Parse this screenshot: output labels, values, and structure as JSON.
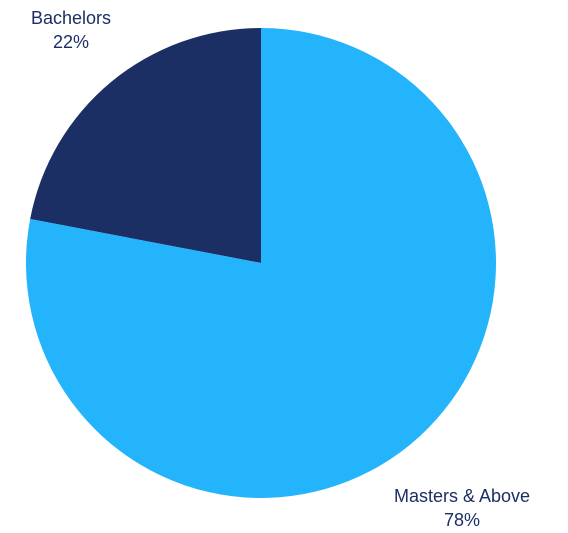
{
  "chart_data": {
    "type": "pie",
    "title": "",
    "slices": [
      {
        "label": "Bachelors",
        "value": 22,
        "value_label": "22%",
        "color": "#1b2f64"
      },
      {
        "label": "Masters & Above",
        "value": 78,
        "value_label": "78%",
        "color": "#23b4fc"
      }
    ],
    "start_angle": "12 o'clock",
    "direction": "counter-clockwise from top for Bachelors",
    "legend": "none (labels placed outside slices)"
  }
}
